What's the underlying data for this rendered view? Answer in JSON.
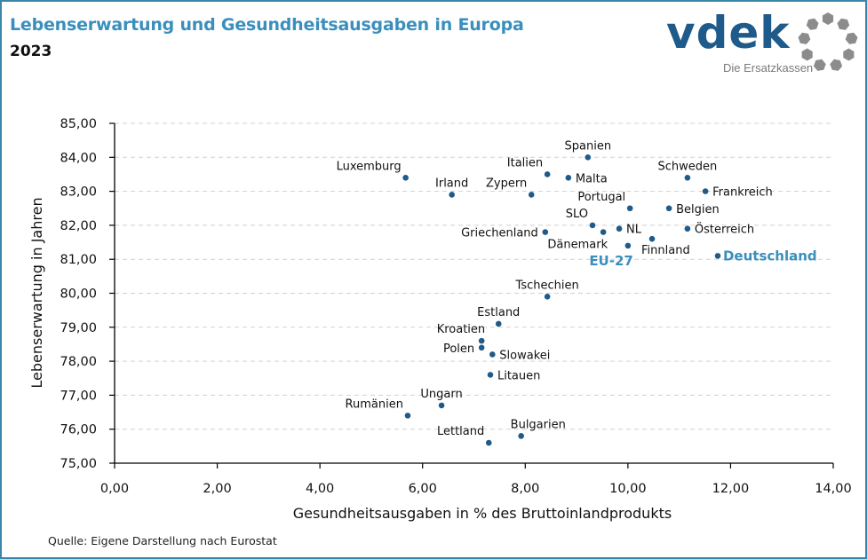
{
  "header": {
    "title": "Lebenserwartung und Gesundheitsausgaben in Europa",
    "subtitle": "2023"
  },
  "logo": {
    "wordmark": "vdek",
    "tagline": "Die Ersatzkassen",
    "icon": "ring-of-hexagons-icon",
    "colors": {
      "wordmark": "#1f5b8a",
      "ring": "#8c8c8c"
    }
  },
  "source": "Quelle: Eigene Darstellung nach Eurostat",
  "colors": {
    "marker": "#1f5b8a",
    "highlight": "#3a8fbd",
    "grid": "#d0d0d0",
    "frame": "#3a86a8"
  },
  "chart_data": {
    "type": "scatter",
    "title": "Lebenserwartung und Gesundheitsausgaben in Europa",
    "subtitle": "2023",
    "xlabel": "Gesundheitsausgaben in % des Bruttoinlandprodukts",
    "ylabel": "Lebenserwartung in Jahren",
    "xlim": [
      0,
      14
    ],
    "ylim": [
      75,
      85
    ],
    "x_ticks": [
      0,
      2,
      4,
      6,
      8,
      10,
      12,
      14
    ],
    "y_ticks": [
      75,
      76,
      77,
      78,
      79,
      80,
      81,
      82,
      83,
      84,
      85
    ],
    "x_tick_labels": [
      "0,00",
      "2,00",
      "4,00",
      "6,00",
      "8,00",
      "10,00",
      "12,00",
      "14,00"
    ],
    "y_tick_labels": [
      "75,00",
      "76,00",
      "77,00",
      "78,00",
      "79,00",
      "80,00",
      "81,00",
      "82,00",
      "83,00",
      "84,00",
      "85,00"
    ],
    "grid": "horizontal dashed",
    "legend": "none",
    "points": [
      {
        "label": "Luxemburg",
        "x": 5.67,
        "y": 83.4,
        "label_pos": "above-left"
      },
      {
        "label": "Irland",
        "x": 6.57,
        "y": 82.9,
        "label_pos": "above"
      },
      {
        "label": "Italien",
        "x": 8.43,
        "y": 83.5,
        "label_pos": "above-left"
      },
      {
        "label": "Malta",
        "x": 8.84,
        "y": 83.4,
        "label_pos": "right"
      },
      {
        "label": "Spanien",
        "x": 9.22,
        "y": 84.0,
        "label_pos": "above"
      },
      {
        "label": "Zypern",
        "x": 8.12,
        "y": 82.9,
        "label_pos": "above-left"
      },
      {
        "label": "Schweden",
        "x": 11.16,
        "y": 83.4,
        "label_pos": "above"
      },
      {
        "label": "Frankreich",
        "x": 11.51,
        "y": 83.0,
        "label_pos": "right"
      },
      {
        "label": "Portugal",
        "x": 10.04,
        "y": 82.5,
        "label_pos": "above-left"
      },
      {
        "label": "Belgien",
        "x": 10.8,
        "y": 82.5,
        "label_pos": "right"
      },
      {
        "label": "SLO",
        "x": 9.31,
        "y": 82.0,
        "label_pos": "above-left"
      },
      {
        "label": "NL",
        "x": 9.83,
        "y": 81.9,
        "label_pos": "right"
      },
      {
        "label": "Dänemark",
        "x": 9.52,
        "y": 81.8,
        "label_pos": "below-left"
      },
      {
        "label": "Griechenland",
        "x": 8.39,
        "y": 81.8,
        "label_pos": "left"
      },
      {
        "label": "Österreich",
        "x": 11.16,
        "y": 81.9,
        "label_pos": "right"
      },
      {
        "label": "Finnland",
        "x": 10.47,
        "y": 81.6,
        "label_pos": "below-right"
      },
      {
        "label": "EU-27",
        "x": 10.0,
        "y": 81.4,
        "label_pos": "below-left",
        "highlight": true
      },
      {
        "label": "Deutschland",
        "x": 11.75,
        "y": 81.1,
        "label_pos": "right",
        "highlight": true
      },
      {
        "label": "Tschechien",
        "x": 8.43,
        "y": 79.9,
        "label_pos": "above"
      },
      {
        "label": "Estland",
        "x": 7.48,
        "y": 79.1,
        "label_pos": "above"
      },
      {
        "label": "Kroatien",
        "x": 7.15,
        "y": 78.6,
        "label_pos": "above-left"
      },
      {
        "label": "Polen",
        "x": 7.15,
        "y": 78.4,
        "label_pos": "left"
      },
      {
        "label": "Slowakei",
        "x": 7.36,
        "y": 78.2,
        "label_pos": "right"
      },
      {
        "label": "Litauen",
        "x": 7.32,
        "y": 77.6,
        "label_pos": "right"
      },
      {
        "label": "Ungarn",
        "x": 6.37,
        "y": 76.7,
        "label_pos": "above"
      },
      {
        "label": "Rumänien",
        "x": 5.71,
        "y": 76.4,
        "label_pos": "above-left"
      },
      {
        "label": "Bulgarien",
        "x": 7.92,
        "y": 75.8,
        "label_pos": "above-right"
      },
      {
        "label": "Lettland",
        "x": 7.29,
        "y": 75.6,
        "label_pos": "above-left"
      }
    ]
  }
}
